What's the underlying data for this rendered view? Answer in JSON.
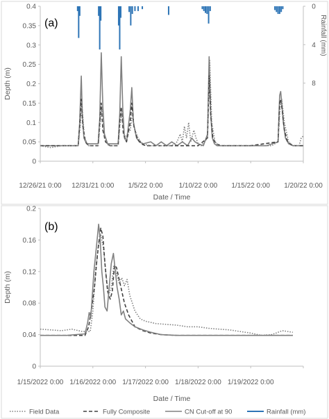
{
  "legend": [
    {
      "label": "Field Data",
      "color": "#7f7f7f",
      "style": "dotted"
    },
    {
      "label": "Fully Composite",
      "color": "#404040",
      "style": "dashed"
    },
    {
      "label": "CN Cut-off at 90",
      "color": "#808080",
      "style": "solid"
    },
    {
      "label": "Rainfall (mm)",
      "color": "#2e75b6",
      "style": "solid"
    }
  ],
  "chart_data": [
    {
      "panel": "(a)",
      "type": "line",
      "xlabel": "Date / Time",
      "ylabel": "Depth (m)",
      "y2label": "Rainfall (mm)",
      "xlim": [
        0,
        25
      ],
      "ylim": [
        0,
        0.4
      ],
      "y2lim": [
        0,
        10
      ],
      "y2_reversed": true,
      "xticks": [
        0,
        5,
        10,
        15,
        20,
        25
      ],
      "xtick_labels": [
        "12/26/21 0:00",
        "12/31/21 0:00",
        "1/5/22 0:00",
        "1/10/22 0:00",
        "1/15/22 0:00",
        "1/20/22 0:00"
      ],
      "yticks": [
        0,
        0.05,
        0.1,
        0.15,
        0.2,
        0.25,
        0.3,
        0.35,
        0.4
      ],
      "ytick_labels": [
        "0",
        "0.05",
        "0.1",
        "0.15",
        "0.2",
        "0.25",
        "0.3",
        "0.35",
        "0.4"
      ],
      "y2ticks": [
        0,
        4,
        8
      ],
      "y2tick_labels": [
        "0",
        "4",
        "8"
      ],
      "grid": false,
      "x_units": "days since 12/26/21 0:00",
      "series": [
        {
          "name": "CN Cut-off at 90",
          "color": "#808080",
          "dash": "",
          "x": [
            0,
            3.6,
            3.75,
            3.9,
            4.0,
            4.15,
            4.4,
            5.5,
            5.65,
            5.8,
            5.95,
            6.1,
            6.4,
            7.4,
            7.55,
            7.7,
            7.85,
            8.0,
            8.2,
            8.55,
            8.7,
            8.85,
            9.0,
            9.15,
            9.4,
            9.8,
            10.5,
            11,
            11.5,
            12,
            12.5,
            13,
            13.5,
            14,
            14.4,
            14.7,
            15,
            15.5,
            15.9,
            16.05,
            16.2,
            16.35,
            16.55,
            16.8,
            17.5,
            18.5,
            19.5,
            20.5,
            21.5,
            22.6,
            22.75,
            22.85,
            22.95,
            23.1,
            23.3,
            23.6,
            24,
            25
          ],
          "y": [
            0.04,
            0.04,
            0.1,
            0.22,
            0.12,
            0.06,
            0.045,
            0.045,
            0.11,
            0.28,
            0.14,
            0.07,
            0.045,
            0.045,
            0.12,
            0.27,
            0.13,
            0.06,
            0.05,
            0.13,
            0.19,
            0.1,
            0.08,
            0.06,
            0.05,
            0.045,
            0.05,
            0.04,
            0.05,
            0.04,
            0.05,
            0.04,
            0.05,
            0.04,
            0.06,
            0.05,
            0.045,
            0.04,
            0.07,
            0.27,
            0.12,
            0.06,
            0.045,
            0.04,
            0.04,
            0.04,
            0.04,
            0.04,
            0.04,
            0.05,
            0.17,
            0.18,
            0.15,
            0.1,
            0.06,
            0.045,
            0.04,
            0.04
          ]
        },
        {
          "name": "Fully Composite",
          "color": "#404040",
          "dash": "5,3",
          "x": [
            0,
            3.6,
            3.75,
            3.9,
            4.05,
            4.3,
            4.6,
            5.5,
            5.65,
            5.8,
            5.95,
            6.2,
            6.6,
            7.4,
            7.55,
            7.7,
            7.9,
            8.2,
            8.55,
            8.7,
            8.9,
            9.2,
            9.6,
            10,
            11,
            12,
            13,
            14,
            15,
            15.9,
            16.05,
            16.2,
            16.4,
            16.7,
            17.2,
            20,
            22.6,
            22.75,
            22.85,
            23.0,
            23.2,
            23.5,
            24,
            25
          ],
          "y": [
            0.04,
            0.04,
            0.09,
            0.16,
            0.09,
            0.05,
            0.04,
            0.04,
            0.1,
            0.15,
            0.08,
            0.05,
            0.04,
            0.04,
            0.1,
            0.14,
            0.07,
            0.05,
            0.1,
            0.15,
            0.09,
            0.06,
            0.045,
            0.04,
            0.04,
            0.04,
            0.04,
            0.04,
            0.04,
            0.06,
            0.22,
            0.12,
            0.06,
            0.045,
            0.04,
            0.04,
            0.05,
            0.15,
            0.16,
            0.13,
            0.08,
            0.05,
            0.04,
            0.04
          ]
        },
        {
          "name": "Field Data",
          "color": "#7f7f7f",
          "dash": "1.5,2",
          "x": [
            0,
            1,
            2,
            3,
            3.6,
            3.8,
            3.95,
            4.2,
            4.6,
            5,
            5.5,
            5.7,
            5.85,
            6.1,
            6.5,
            7,
            7.4,
            7.6,
            7.75,
            8,
            8.55,
            8.75,
            9.0,
            9.3,
            9.7,
            10.5,
            11.5,
            12.5,
            13.0,
            13.3,
            13.5,
            13.7,
            13.9,
            14.1,
            14.3,
            14.6,
            14.8,
            15.0,
            15.3,
            15.9,
            16.1,
            16.3,
            16.6,
            17,
            18,
            19,
            20,
            21,
            22,
            22.6,
            22.8,
            22.95,
            23.2,
            23.6,
            24,
            24.6,
            24.8,
            25
          ],
          "y": [
            0.04,
            0.035,
            0.04,
            0.04,
            0.04,
            0.09,
            0.15,
            0.06,
            0.04,
            0.04,
            0.04,
            0.1,
            0.14,
            0.06,
            0.04,
            0.04,
            0.04,
            0.1,
            0.13,
            0.06,
            0.08,
            0.12,
            0.08,
            0.06,
            0.045,
            0.04,
            0.04,
            0.04,
            0.05,
            0.07,
            0.05,
            0.09,
            0.06,
            0.1,
            0.05,
            0.08,
            0.06,
            0.045,
            0.04,
            0.06,
            0.26,
            0.1,
            0.05,
            0.04,
            0.04,
            0.04,
            0.04,
            0.04,
            0.04,
            0.05,
            0.14,
            0.16,
            0.1,
            0.05,
            0.04,
            0.04,
            0.06,
            0.065
          ]
        }
      ],
      "rainfall": {
        "name": "Rainfall (mm)",
        "color": "#2e75b6",
        "x": [
          3.55,
          3.65,
          3.75,
          5.55,
          5.65,
          5.75,
          7.45,
          7.55,
          7.65,
          8.45,
          8.6,
          8.75,
          9.0,
          9.3,
          9.7,
          12.2,
          15.4,
          15.55,
          15.7,
          15.85,
          16.0,
          16.15,
          22.3,
          22.45,
          22.6,
          22.75,
          22.9,
          23.05
        ],
        "y": [
          0.5,
          3.3,
          1.0,
          1.0,
          4.5,
          1.5,
          2.0,
          4.5,
          1.2,
          0.6,
          2.0,
          0.8,
          0.5,
          0.5,
          0.3,
          0.9,
          0.3,
          0.5,
          0.7,
          0.8,
          1.8,
          0.5,
          0.4,
          0.6,
          0.8,
          0.8,
          0.6,
          0.3
        ]
      }
    },
    {
      "panel": "(b)",
      "type": "line",
      "xlabel": "Date / Time",
      "ylabel": "Depth (m)",
      "xlim": [
        0,
        5
      ],
      "ylim": [
        0,
        0.2
      ],
      "xticks": [
        0,
        1,
        2,
        3,
        4,
        5
      ],
      "xtick_labels": [
        "1/15/2022 0:00",
        "1/16/2022 0:00",
        "1/17/2022 0:00",
        "1/18/2022 0:00",
        "1/19/2022 0:00",
        ""
      ],
      "yticks": [
        0,
        0.04,
        0.08,
        0.12,
        0.16,
        0.2
      ],
      "ytick_labels": [
        "0",
        "0.04",
        "0.08",
        "0.12",
        "0.16",
        "0.2"
      ],
      "grid": false,
      "x_units": "days since 1/15/2022 0:00",
      "series": [
        {
          "name": "Field Data",
          "color": "#7f7f7f",
          "dash": "1.5,2",
          "x": [
            0,
            0.2,
            0.4,
            0.6,
            0.8,
            0.95,
            1.0,
            1.05,
            1.1,
            1.15,
            1.2,
            1.25,
            1.3,
            1.35,
            1.4,
            1.45,
            1.5,
            1.55,
            1.6,
            1.65,
            1.7,
            1.8,
            1.9,
            2.0,
            2.2,
            2.4,
            2.6,
            2.8,
            3.0,
            3.2,
            3.4,
            3.6,
            3.8,
            4.0,
            4.2,
            4.4,
            4.6,
            4.8
          ],
          "y": [
            0.047,
            0.046,
            0.045,
            0.047,
            0.044,
            0.044,
            0.07,
            0.12,
            0.15,
            0.167,
            0.15,
            0.115,
            0.09,
            0.1,
            0.128,
            0.118,
            0.105,
            0.112,
            0.102,
            0.11,
            0.09,
            0.07,
            0.06,
            0.057,
            0.054,
            0.053,
            0.052,
            0.05,
            0.05,
            0.048,
            0.047,
            0.046,
            0.044,
            0.042,
            0.039,
            0.04,
            0.045,
            0.043
          ]
        },
        {
          "name": "Fully Composite",
          "color": "#404040",
          "dash": "5,3",
          "x": [
            0,
            0.5,
            0.85,
            0.92,
            0.98,
            1.03,
            1.07,
            1.11,
            1.15,
            1.19,
            1.23,
            1.28,
            1.33,
            1.37,
            1.41,
            1.45,
            1.5,
            1.55,
            1.6,
            1.68,
            1.8,
            1.95,
            2.1,
            2.3,
            2.6,
            3,
            4,
            4.8
          ],
          "y": [
            0.039,
            0.039,
            0.039,
            0.05,
            0.075,
            0.1,
            0.13,
            0.155,
            0.175,
            0.165,
            0.13,
            0.095,
            0.085,
            0.095,
            0.128,
            0.125,
            0.11,
            0.095,
            0.08,
            0.065,
            0.05,
            0.045,
            0.042,
            0.04,
            0.039,
            0.039,
            0.039,
            0.039
          ]
        },
        {
          "name": "CN Cut-off at 90",
          "color": "#808080",
          "dash": "",
          "x": [
            0,
            0.5,
            0.85,
            0.9,
            0.93,
            0.96,
            0.99,
            1.02,
            1.05,
            1.08,
            1.11,
            1.14,
            1.17,
            1.2,
            1.23,
            1.27,
            1.31,
            1.35,
            1.39,
            1.42,
            1.46,
            1.5,
            1.54,
            1.58,
            1.62,
            1.7,
            1.8,
            1.95,
            2.1,
            2.3,
            2.6,
            3,
            4,
            4.8
          ],
          "y": [
            0.039,
            0.039,
            0.041,
            0.055,
            0.068,
            0.062,
            0.09,
            0.12,
            0.14,
            0.16,
            0.18,
            0.16,
            0.12,
            0.1,
            0.075,
            0.07,
            0.1,
            0.13,
            0.143,
            0.125,
            0.1,
            0.085,
            0.065,
            0.07,
            0.06,
            0.055,
            0.05,
            0.046,
            0.043,
            0.04,
            0.039,
            0.039,
            0.039,
            0.039
          ]
        }
      ]
    }
  ]
}
